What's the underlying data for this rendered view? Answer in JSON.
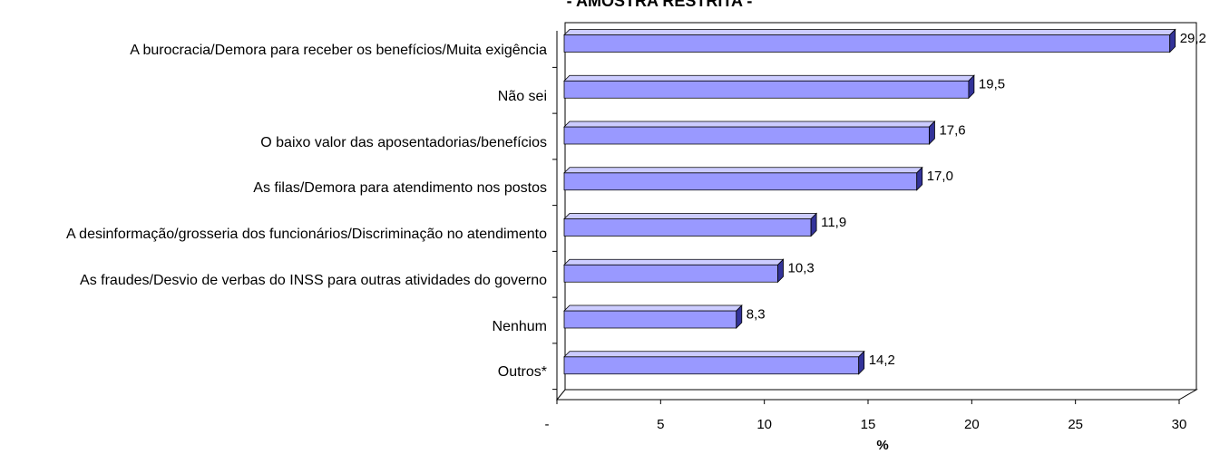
{
  "chart_data": {
    "type": "bar",
    "orientation": "horizontal",
    "title": "- AMOSTRA RESTRITA -",
    "x_label": "%",
    "categories": [
      "A burocracia/Demora para receber os benefícios/Muita exigência",
      "Não sei",
      "O baixo valor das aposentadorias/benefícios",
      "As filas/Demora para atendimento nos postos",
      "A desinformação/grosseria dos funcionários/Discriminação no atendimento",
      "As fraudes/Desvio de verbas do INSS para outras atividades do governo",
      "Nenhum",
      "Outros*"
    ],
    "values": [
      29.2,
      19.5,
      17.6,
      17.0,
      11.9,
      10.3,
      8.3,
      14.2
    ],
    "value_labels": [
      "29,2",
      "19,5",
      "17,6",
      "17,0",
      "11,9",
      "10,3",
      "8,3",
      "14,2"
    ],
    "color": "#9999ff",
    "xlim": [
      0,
      30
    ],
    "xticks": [
      {
        "value": 0,
        "label": "-"
      },
      5,
      10,
      15,
      20,
      25,
      30
    ]
  }
}
